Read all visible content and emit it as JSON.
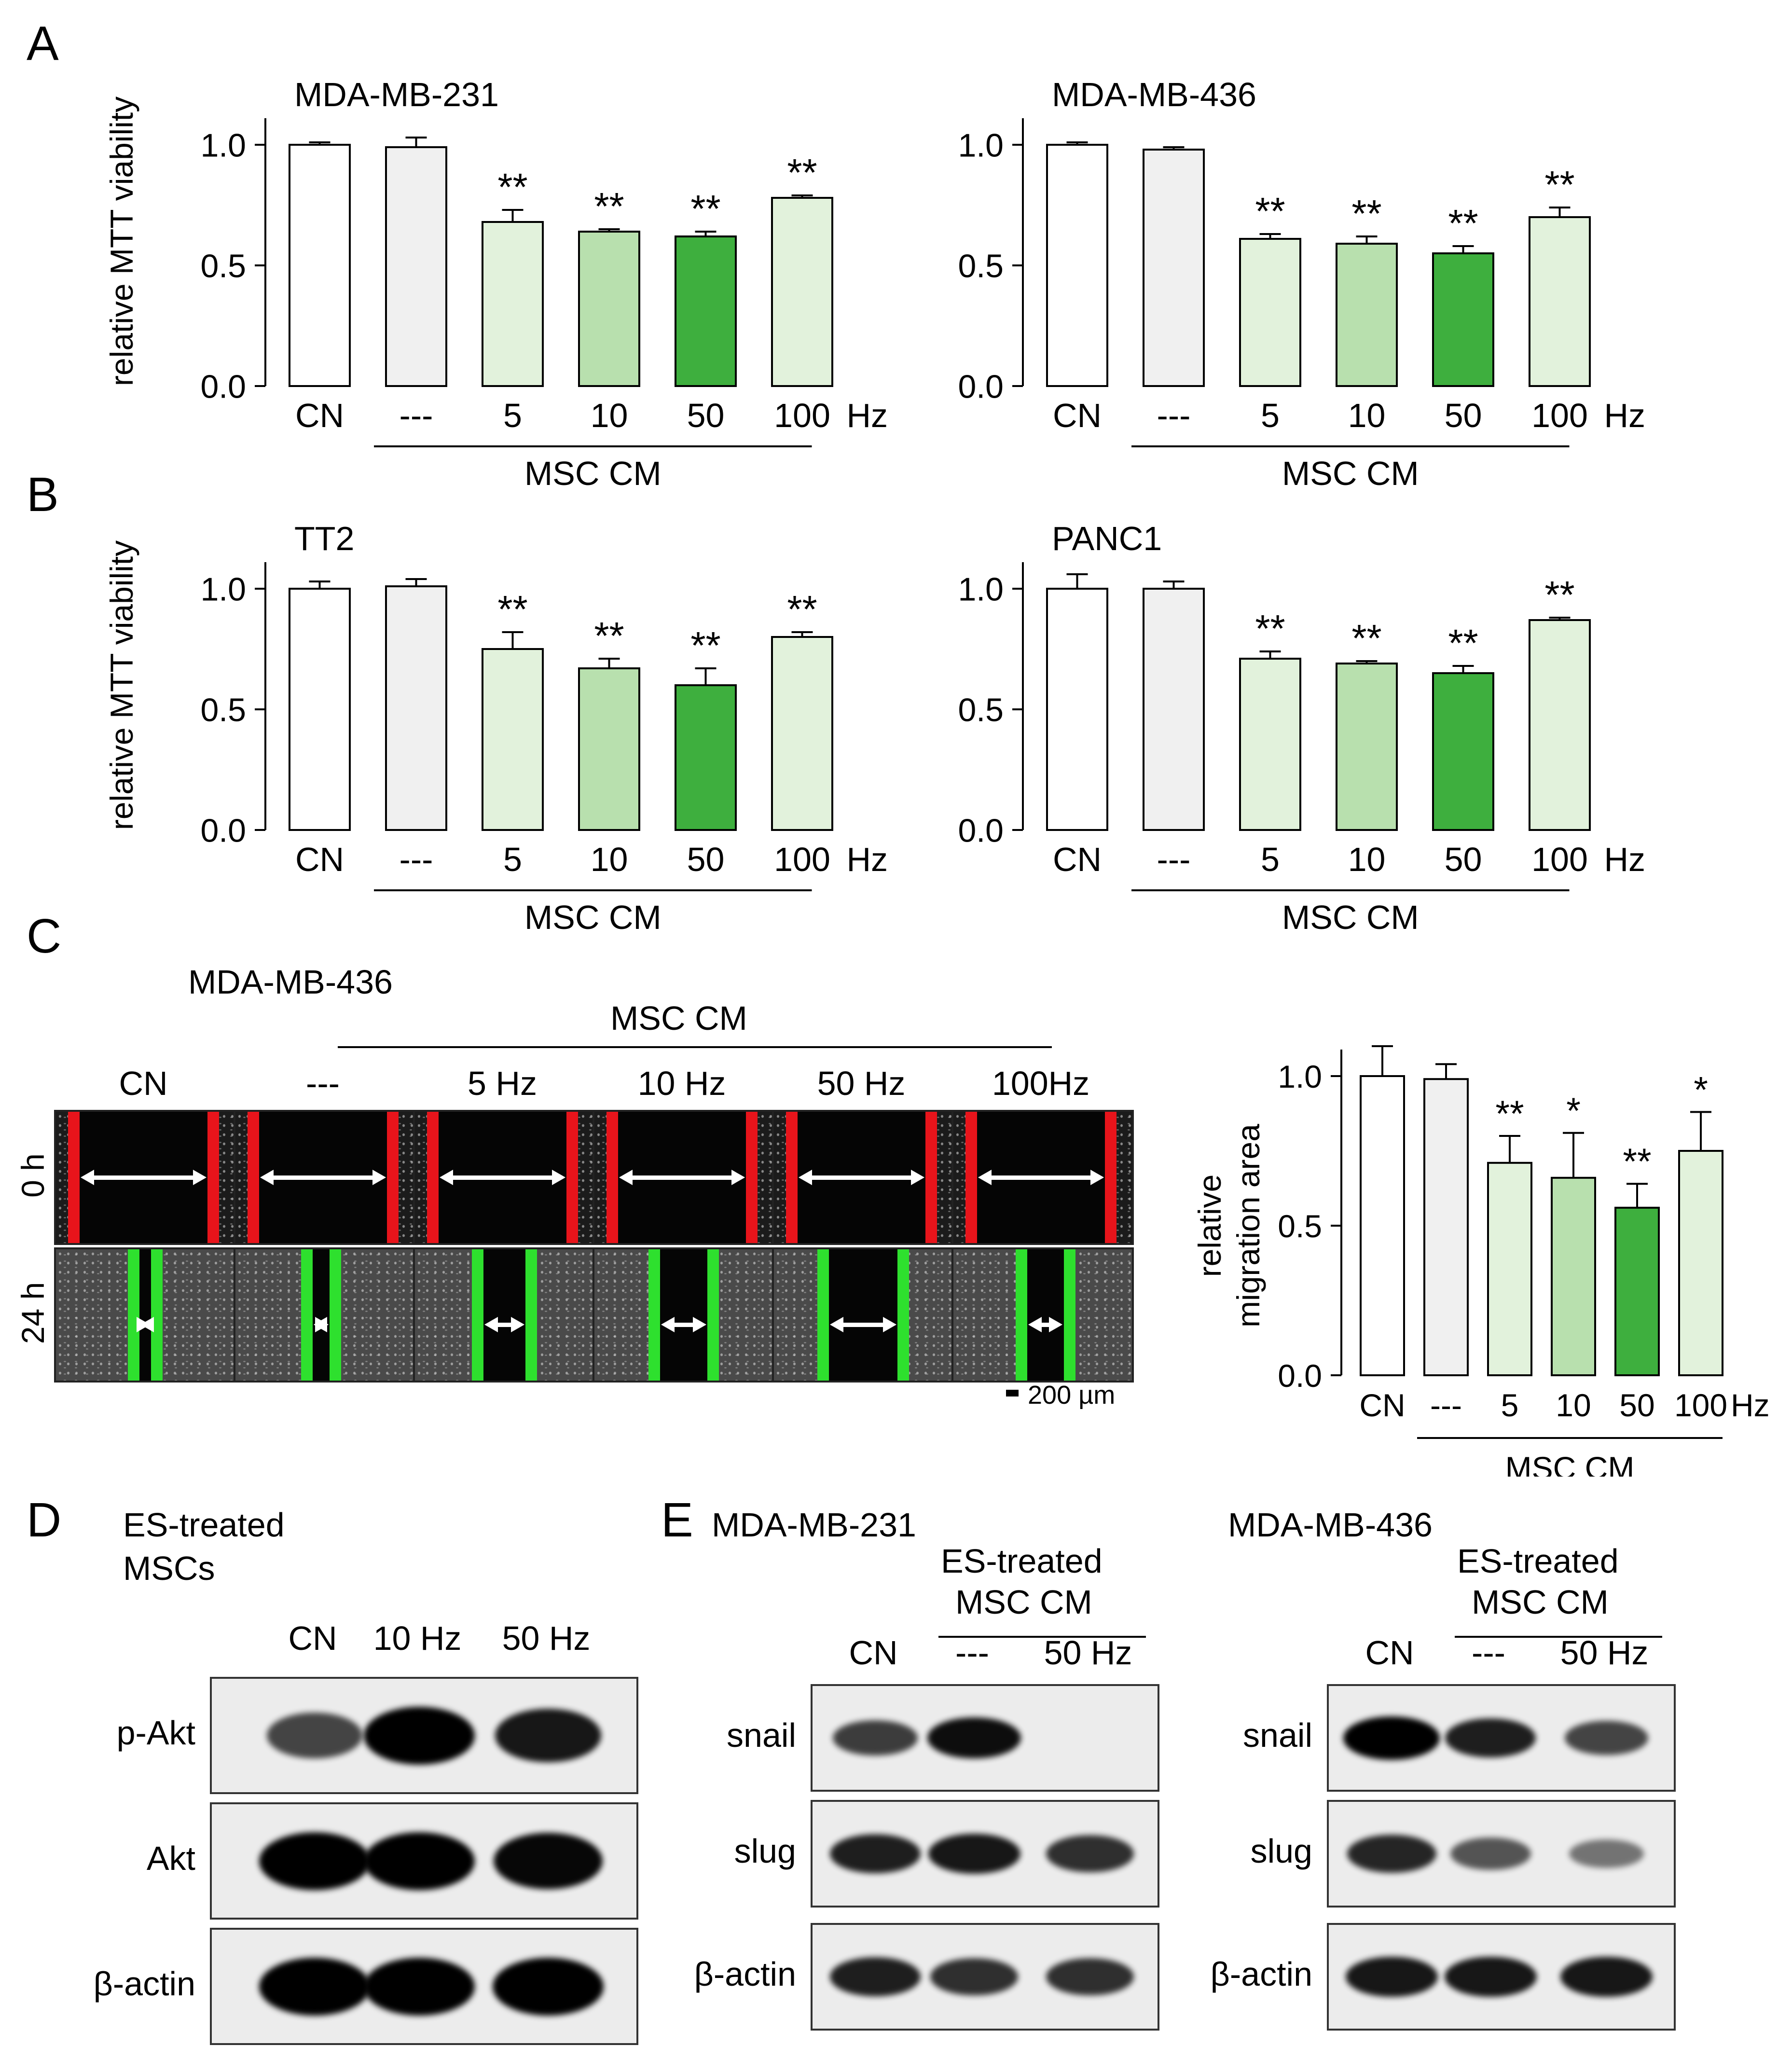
{
  "panel_labels": {
    "a": "A",
    "b": "B",
    "c": "C",
    "d": "D",
    "e": "E"
  },
  "colors": {
    "white": "#ffffff",
    "gray": "#f0f0f0",
    "light_green": "#e2f2dc",
    "mid_green": "#b8e0ae",
    "dark_green": "#3eaf3e",
    "red_line": "#e8141b",
    "green_line": "#2ee02e"
  },
  "chart_data": [
    {
      "id": "A-left",
      "type": "bar",
      "title": "MDA-MB-231",
      "ylabel": "relative MTT viability",
      "ylim": [
        0,
        1.0
      ],
      "yticks": [
        "0.0",
        "0.5",
        "1.0"
      ],
      "categories": [
        "CN",
        "---",
        "5",
        "10",
        "50",
        "100"
      ],
      "unit": "Hz",
      "group_label": "MSC CM",
      "values": [
        1.0,
        0.99,
        0.68,
        0.64,
        0.62,
        0.78
      ],
      "errors": [
        0.01,
        0.04,
        0.05,
        0.01,
        0.02,
        0.01
      ],
      "significance": [
        "",
        "",
        "**",
        "**",
        "**",
        "**"
      ]
    },
    {
      "id": "A-right",
      "type": "bar",
      "title": "MDA-MB-436",
      "ylabel": "",
      "ylim": [
        0,
        1.0
      ],
      "yticks": [
        "0.0",
        "0.5",
        "1.0"
      ],
      "categories": [
        "CN",
        "---",
        "5",
        "10",
        "50",
        "100"
      ],
      "unit": "Hz",
      "group_label": "MSC CM",
      "values": [
        1.0,
        0.98,
        0.61,
        0.59,
        0.55,
        0.7
      ],
      "errors": [
        0.01,
        0.01,
        0.02,
        0.03,
        0.03,
        0.04
      ],
      "significance": [
        "",
        "",
        "**",
        "**",
        "**",
        "**"
      ]
    },
    {
      "id": "B-left",
      "type": "bar",
      "title": "TT2",
      "ylabel": "relative MTT viability",
      "ylim": [
        0,
        1.0
      ],
      "yticks": [
        "0.0",
        "0.5",
        "1.0"
      ],
      "categories": [
        "CN",
        "---",
        "5",
        "10",
        "50",
        "100"
      ],
      "unit": "Hz",
      "group_label": "MSC CM",
      "values": [
        1.0,
        1.01,
        0.75,
        0.67,
        0.6,
        0.8
      ],
      "errors": [
        0.03,
        0.03,
        0.07,
        0.04,
        0.07,
        0.02
      ],
      "significance": [
        "",
        "",
        "**",
        "**",
        "**",
        "**"
      ]
    },
    {
      "id": "B-right",
      "type": "bar",
      "title": "PANC1",
      "ylabel": "",
      "ylim": [
        0,
        1.0
      ],
      "yticks": [
        "0.0",
        "0.5",
        "1.0"
      ],
      "categories": [
        "CN",
        "---",
        "5",
        "10",
        "50",
        "100"
      ],
      "unit": "Hz",
      "group_label": "MSC CM",
      "values": [
        1.0,
        1.0,
        0.71,
        0.69,
        0.65,
        0.87
      ],
      "errors": [
        0.06,
        0.03,
        0.03,
        0.01,
        0.03,
        0.01
      ],
      "significance": [
        "",
        "",
        "**",
        "**",
        "**",
        "**"
      ]
    },
    {
      "id": "C-right",
      "type": "bar",
      "title": "",
      "ylabel": "relative migration area",
      "ylim": [
        0,
        1.0
      ],
      "yticks": [
        "0.0",
        "0.5",
        "1.0"
      ],
      "categories": [
        "CN",
        "---",
        "5",
        "10",
        "50",
        "100"
      ],
      "unit": "Hz",
      "group_label": "MSC CM",
      "values": [
        1.0,
        0.99,
        0.71,
        0.66,
        0.56,
        0.75
      ],
      "errors": [
        0.1,
        0.05,
        0.09,
        0.15,
        0.08,
        0.13
      ],
      "significance": [
        "",
        "",
        "**",
        "*",
        "**",
        "*"
      ]
    }
  ],
  "panel_c": {
    "cell_line": "MDA-MB-436",
    "group_label": "MSC CM",
    "columns": [
      "CN",
      "---",
      "5 Hz",
      "10 Hz",
      "50 Hz",
      "100Hz"
    ],
    "row_labels": [
      "0 h",
      "24 h"
    ],
    "scale_bar": "200 µm",
    "gap_24h_fraction": [
      0.13,
      0.16,
      0.3,
      0.33,
      0.45,
      0.27
    ]
  },
  "panel_d": {
    "title_line1": "ES-treated",
    "title_line2": "MSCs",
    "lanes": [
      "CN",
      "10 Hz",
      "50 Hz"
    ],
    "rows": [
      {
        "label": "p-Akt",
        "intensity": [
          0.55,
          1.0,
          0.85
        ]
      },
      {
        "label": "Akt",
        "intensity": [
          1.0,
          1.0,
          0.95
        ]
      },
      {
        "label": "β-actin",
        "intensity": [
          1.0,
          1.0,
          1.0
        ]
      }
    ]
  },
  "panel_e": [
    {
      "title": "MDA-MB-231",
      "header_line1": "ES-treated",
      "header_line2": "MSC CM",
      "lanes": [
        "CN",
        "---",
        "50 Hz"
      ],
      "rows": [
        {
          "label": "snail",
          "intensity": [
            0.6,
            0.9,
            0.05
          ]
        },
        {
          "label": "slug",
          "intensity": [
            0.8,
            0.85,
            0.7
          ]
        },
        {
          "label": "β-actin",
          "intensity": [
            0.8,
            0.7,
            0.7
          ]
        }
      ]
    },
    {
      "title": "MDA-MB-436",
      "header_line1": "ES-treated",
      "header_line2": "MSC CM",
      "lanes": [
        "CN",
        "---",
        "50 Hz"
      ],
      "rows": [
        {
          "label": "snail",
          "intensity": [
            1.0,
            0.8,
            0.55
          ]
        },
        {
          "label": "slug",
          "intensity": [
            0.75,
            0.45,
            0.25
          ]
        },
        {
          "label": "β-actin",
          "intensity": [
            0.85,
            0.85,
            0.85
          ]
        }
      ]
    }
  ]
}
